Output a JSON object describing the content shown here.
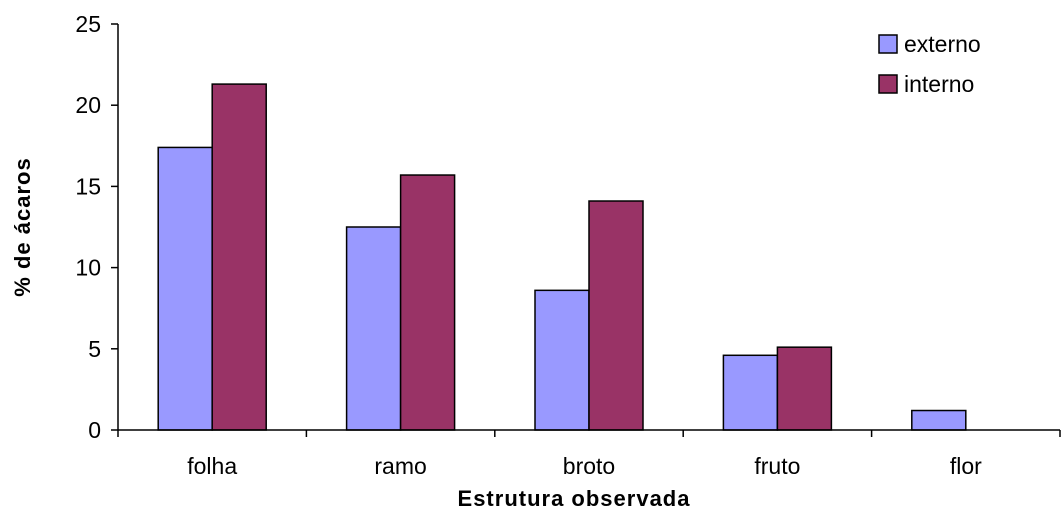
{
  "chart_data": {
    "type": "bar",
    "title": "",
    "xlabel": "Estrutura observada",
    "ylabel": "% de ácaros",
    "categories": [
      "folha",
      "ramo",
      "broto",
      "fruto",
      "flor"
    ],
    "series": [
      {
        "name": "externo",
        "color": "#9999ff",
        "values": [
          17.4,
          12.5,
          8.6,
          4.6,
          1.2
        ]
      },
      {
        "name": "interno",
        "color": "#993366",
        "values": [
          21.3,
          15.7,
          14.1,
          5.1,
          0
        ]
      }
    ],
    "ylim": [
      0,
      25
    ],
    "yticks": [
      0,
      5,
      10,
      15,
      20,
      25
    ],
    "grid": false,
    "legend_position": "top-right"
  }
}
